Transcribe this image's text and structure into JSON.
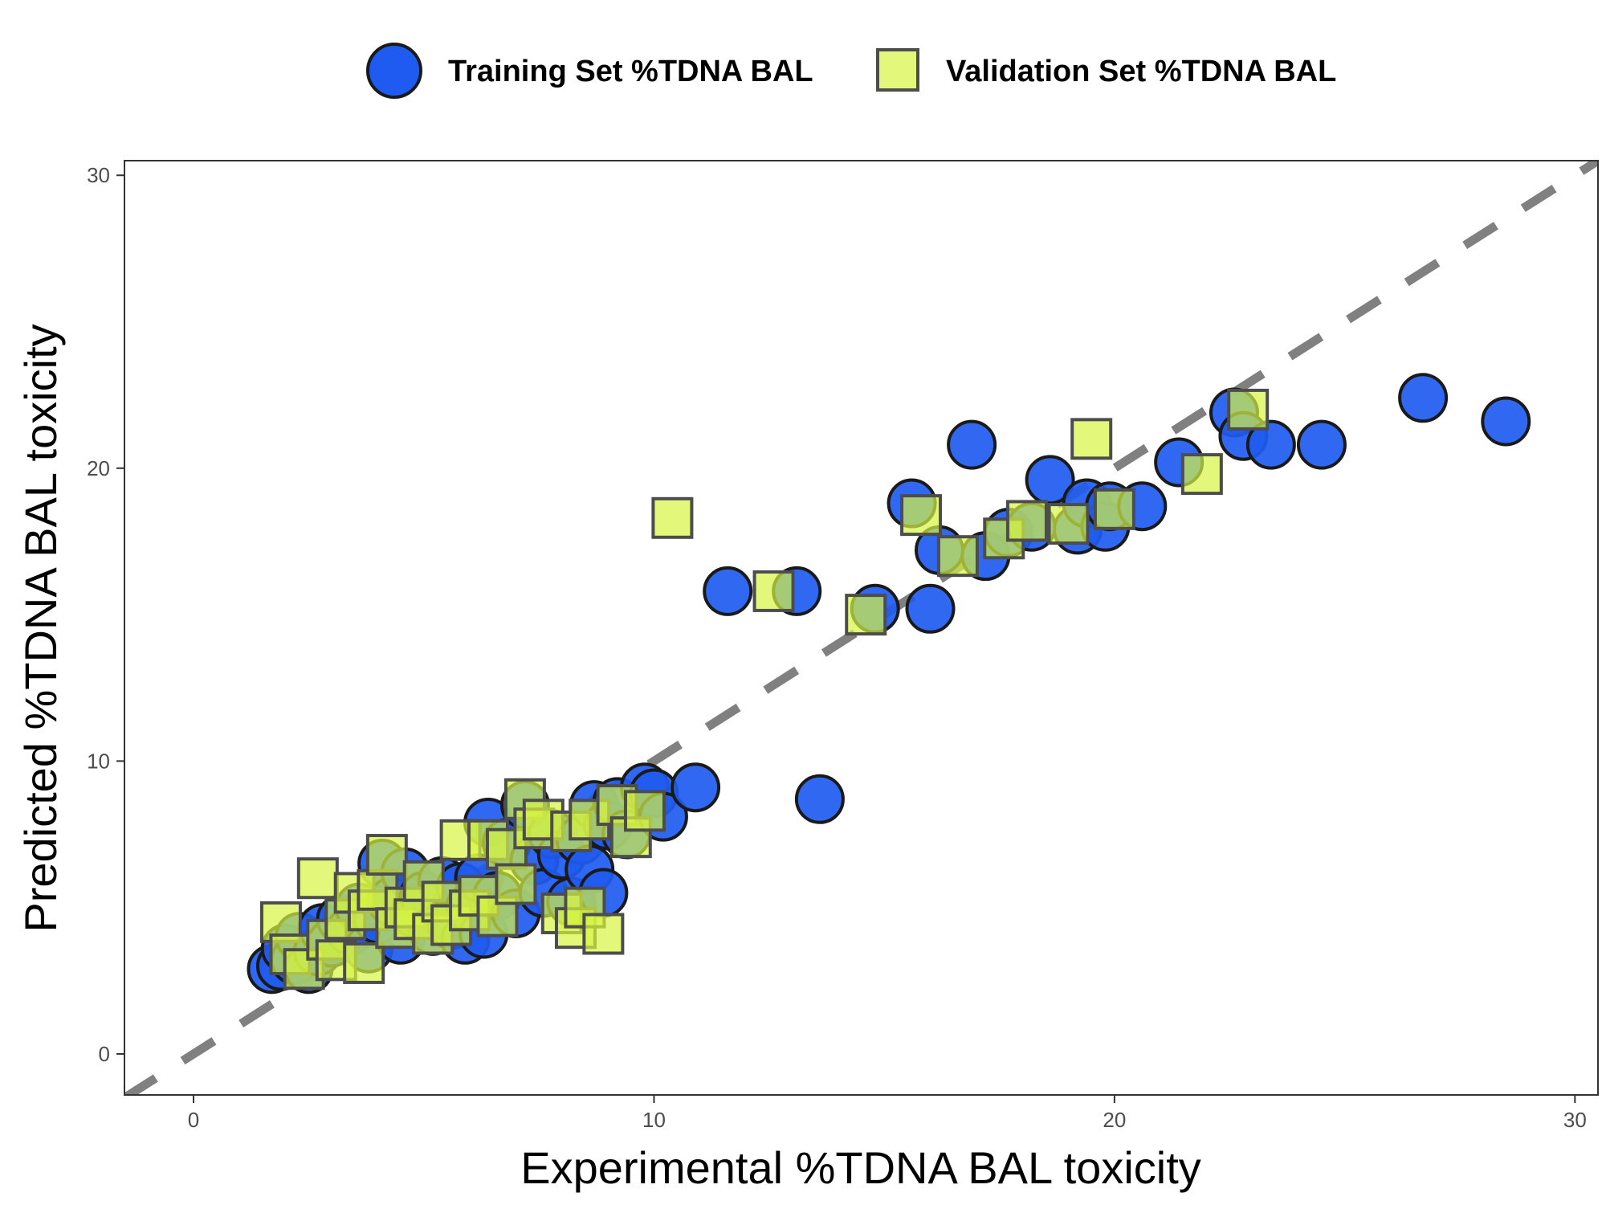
{
  "chart_data": {
    "type": "scatter",
    "xlabel": "Experimental %TDNA BAL toxicity",
    "ylabel": "Predicted %TDNA BAL toxicity",
    "xlim": [
      -1.5,
      30.5
    ],
    "ylim": [
      -1.4,
      30.5
    ],
    "x_ticks": [
      0,
      10,
      20,
      30
    ],
    "y_ticks": [
      0,
      10,
      20,
      30
    ],
    "grid": false,
    "legend_position": "top",
    "reference_line": {
      "style": "dashed",
      "color": "#808080",
      "from": [
        -1.5,
        -1.5
      ],
      "to": [
        30.5,
        30.5
      ]
    },
    "series": [
      {
        "name": "Training Set %TDNA BAL",
        "marker": "circle",
        "fill": "#1F5BF0",
        "stroke": "#1a1a1a",
        "points": [
          [
            1.7,
            2.9
          ],
          [
            1.9,
            3.0
          ],
          [
            2.0,
            3.6
          ],
          [
            2.2,
            3.2
          ],
          [
            2.3,
            4.0
          ],
          [
            2.5,
            2.9
          ],
          [
            2.7,
            3.5
          ],
          [
            2.8,
            4.3
          ],
          [
            3.0,
            3.8
          ],
          [
            3.2,
            4.6
          ],
          [
            3.4,
            4.2
          ],
          [
            3.6,
            5.0
          ],
          [
            3.8,
            3.6
          ],
          [
            4.0,
            4.6
          ],
          [
            4.1,
            6.5
          ],
          [
            4.3,
            5.2
          ],
          [
            4.5,
            3.9
          ],
          [
            4.6,
            6.2
          ],
          [
            4.8,
            4.8
          ],
          [
            5.0,
            5.4
          ],
          [
            5.2,
            4.2
          ],
          [
            5.4,
            5.9
          ],
          [
            5.6,
            4.4
          ],
          [
            5.8,
            5.7
          ],
          [
            5.9,
            3.9
          ],
          [
            6.0,
            5.0
          ],
          [
            6.2,
            6.0
          ],
          [
            6.3,
            4.1
          ],
          [
            6.4,
            7.9
          ],
          [
            6.6,
            5.4
          ],
          [
            6.8,
            7.2
          ],
          [
            7.0,
            4.8
          ],
          [
            7.2,
            8.5
          ],
          [
            7.4,
            6.6
          ],
          [
            7.6,
            5.5
          ],
          [
            7.8,
            7.5
          ],
          [
            8.0,
            6.8
          ],
          [
            8.2,
            5.2
          ],
          [
            8.4,
            7.3
          ],
          [
            8.6,
            6.3
          ],
          [
            8.7,
            8.5
          ],
          [
            8.9,
            5.5
          ],
          [
            9.0,
            7.8
          ],
          [
            9.2,
            8.6
          ],
          [
            9.4,
            7.5
          ],
          [
            9.8,
            9.1
          ],
          [
            10.0,
            8.9
          ],
          [
            10.2,
            8.1
          ],
          [
            10.9,
            9.1
          ],
          [
            11.6,
            15.8
          ],
          [
            13.1,
            15.8
          ],
          [
            13.6,
            8.7
          ],
          [
            14.8,
            15.2
          ],
          [
            15.6,
            18.8
          ],
          [
            16.0,
            15.2
          ],
          [
            16.2,
            17.2
          ],
          [
            16.9,
            20.8
          ],
          [
            17.2,
            17.0
          ],
          [
            17.7,
            17.8
          ],
          [
            18.2,
            18.0
          ],
          [
            18.6,
            19.6
          ],
          [
            19.2,
            17.9
          ],
          [
            19.4,
            18.8
          ],
          [
            19.8,
            18.0
          ],
          [
            19.9,
            18.7
          ],
          [
            20.6,
            18.7
          ],
          [
            21.4,
            20.2
          ],
          [
            22.6,
            21.9
          ],
          [
            22.8,
            21.1
          ],
          [
            23.4,
            20.8
          ],
          [
            24.5,
            20.8
          ],
          [
            26.7,
            22.4
          ],
          [
            28.5,
            21.6
          ]
        ]
      },
      {
        "name": "Validation Set %TDNA BAL",
        "marker": "square",
        "fill": "#D7F542",
        "fill_opacity": 0.7,
        "stroke": "#4d4d4d",
        "points": [
          [
            1.9,
            4.5
          ],
          [
            2.1,
            3.4
          ],
          [
            2.4,
            2.9
          ],
          [
            2.7,
            6.0
          ],
          [
            2.9,
            3.9
          ],
          [
            3.1,
            3.2
          ],
          [
            3.3,
            4.6
          ],
          [
            3.5,
            5.5
          ],
          [
            3.7,
            3.1
          ],
          [
            3.8,
            4.9
          ],
          [
            4.0,
            5.6
          ],
          [
            4.2,
            6.8
          ],
          [
            4.4,
            4.3
          ],
          [
            4.6,
            5.0
          ],
          [
            4.8,
            4.6
          ],
          [
            5.0,
            5.9
          ],
          [
            5.2,
            4.1
          ],
          [
            5.4,
            5.2
          ],
          [
            5.6,
            4.4
          ],
          [
            5.8,
            7.3
          ],
          [
            6.0,
            4.9
          ],
          [
            6.2,
            5.4
          ],
          [
            6.4,
            7.3
          ],
          [
            6.6,
            4.7
          ],
          [
            6.8,
            7.0
          ],
          [
            7.0,
            5.8
          ],
          [
            7.2,
            8.7
          ],
          [
            7.4,
            7.7
          ],
          [
            7.6,
            8.0
          ],
          [
            8.0,
            4.8
          ],
          [
            8.2,
            7.6
          ],
          [
            8.3,
            4.3
          ],
          [
            8.5,
            5.0
          ],
          [
            8.6,
            8.0
          ],
          [
            8.9,
            4.1
          ],
          [
            9.2,
            8.5
          ],
          [
            9.5,
            7.4
          ],
          [
            9.8,
            8.3
          ],
          [
            10.4,
            18.3
          ],
          [
            12.6,
            15.8
          ],
          [
            14.6,
            15.0
          ],
          [
            15.8,
            18.4
          ],
          [
            16.6,
            17.0
          ],
          [
            17.6,
            17.6
          ],
          [
            18.1,
            18.2
          ],
          [
            19.0,
            18.1
          ],
          [
            19.5,
            21.0
          ],
          [
            20.0,
            18.6
          ],
          [
            21.9,
            19.8
          ],
          [
            22.9,
            22.0
          ]
        ]
      }
    ]
  }
}
